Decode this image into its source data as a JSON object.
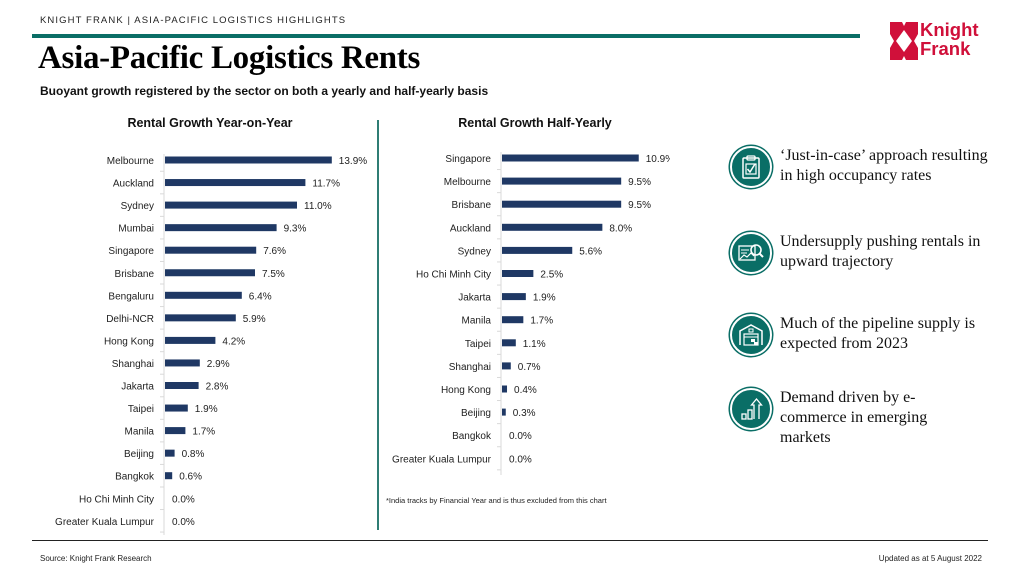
{
  "header": {
    "kicker": "KNIGHT FRANK | ASIA-PACIFIC  LOGISTICS  HIGHLIGHTS",
    "title": "Asia-Pacific Logistics Rents",
    "subtitle": "Buoyant growth registered by the sector on both a yearly and half-yearly basis",
    "logo_line1": "Knight",
    "logo_line2": "Frank"
  },
  "colors": {
    "bar": "#1f3864",
    "accent_teal": "#0a6e66",
    "brand_red": "#d0103a"
  },
  "chart_data": [
    {
      "type": "bar",
      "orientation": "horizontal",
      "title": "Rental Growth Year-on-Year",
      "categories": [
        "Melbourne",
        "Auckland",
        "Sydney",
        "Mumbai",
        "Singapore",
        "Brisbane",
        "Bengaluru",
        "Delhi-NCR",
        "Hong Kong",
        "Shanghai",
        "Jakarta",
        "Taipei",
        "Manila",
        "Beijing",
        "Bangkok",
        "Ho Chi Minh City",
        "Greater Kuala Lumpur"
      ],
      "values": [
        13.9,
        11.7,
        11.0,
        9.3,
        7.6,
        7.5,
        6.4,
        5.9,
        4.2,
        2.9,
        2.8,
        1.9,
        1.7,
        0.8,
        0.6,
        0.0,
        0.0
      ],
      "labels": [
        "13.9%",
        "11.7%",
        "11.0%",
        "9.3%",
        "7.6%",
        "7.5%",
        "6.4%",
        "5.9%",
        "4.2%",
        "2.9%",
        "2.8%",
        "1.9%",
        "1.7%",
        "0.8%",
        "0.6%",
        "0.0%",
        "0.0%"
      ],
      "unit": "%",
      "xlim": [
        0,
        14
      ],
      "grid": false,
      "legend": "none"
    },
    {
      "type": "bar",
      "orientation": "horizontal",
      "title": "Rental Growth Half-Yearly",
      "categories": [
        "Singapore",
        "Melbourne",
        "Brisbane",
        "Auckland",
        "Sydney",
        "Ho Chi Minh City",
        "Jakarta",
        "Manila",
        "Taipei",
        "Shanghai",
        "Hong Kong",
        "Beijing",
        "Bangkok",
        "Greater Kuala Lumpur"
      ],
      "values": [
        10.9,
        9.5,
        9.5,
        8.0,
        5.6,
        2.5,
        1.9,
        1.7,
        1.1,
        0.7,
        0.4,
        0.3,
        0.0,
        0.0
      ],
      "labels": [
        "10.9%",
        "9.5%",
        "9.5%",
        "8.0%",
        "5.6%",
        "2.5%",
        "1.9%",
        "1.7%",
        "1.1%",
        "0.7%",
        "0.4%",
        "0.3%",
        "0.0%",
        "0.0%"
      ],
      "unit": "%",
      "xlim": [
        0,
        11
      ],
      "grid": false,
      "legend": "none",
      "footnote": "*India tracks by Financial Year and is thus excluded from this chart"
    }
  ],
  "highlights": [
    {
      "icon": "clipboard-check-icon",
      "text": "‘Just-in-case’ approach resulting in high occupancy rates"
    },
    {
      "icon": "chart-magnifier-icon",
      "text": "Undersupply pushing rentals in upward trajectory"
    },
    {
      "icon": "warehouse-icon",
      "text": "Much of the pipeline supply is expected from 2023"
    },
    {
      "icon": "growth-arrow-icon",
      "text": "Demand driven by e-commerce in emerging markets"
    }
  ],
  "footer": {
    "source": "Source: Knight Frank Research",
    "updated": "Updated as at 5 August 2022"
  }
}
